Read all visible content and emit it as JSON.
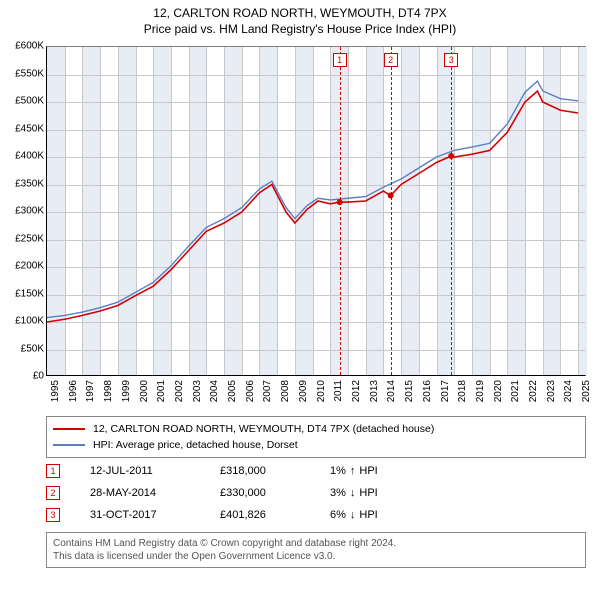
{
  "title": {
    "line1": "12, CARLTON ROAD NORTH, WEYMOUTH, DT4 7PX",
    "line2": "Price paid vs. HM Land Registry's House Price Index (HPI)"
  },
  "chart": {
    "type": "line",
    "background_color": "#ffffff",
    "grid_color": "#c8c8c8",
    "border_color": "#808080",
    "axis_color": "#000000",
    "font_family": "Arial",
    "tick_fontsize": 10,
    "title_fontsize": 12,
    "x": {
      "min": 1995,
      "max": 2025.5,
      "ticks": [
        1995,
        1996,
        1997,
        1998,
        1999,
        2000,
        2001,
        2002,
        2003,
        2004,
        2005,
        2006,
        2007,
        2008,
        2009,
        2010,
        2011,
        2012,
        2013,
        2014,
        2015,
        2016,
        2017,
        2018,
        2019,
        2020,
        2021,
        2022,
        2023,
        2024,
        2025
      ]
    },
    "y": {
      "min": 0,
      "max": 600000,
      "tick_step": 50000,
      "tick_format_prefix": "£",
      "tick_format_suffix": "K",
      "tick_divide": 1000
    },
    "shaded_bands": [
      {
        "from": 1995,
        "to": 1996,
        "color": "#e8edf5"
      },
      {
        "from": 1997,
        "to": 1998,
        "color": "#e8edf5"
      },
      {
        "from": 1999,
        "to": 2000,
        "color": "#e8edf5"
      },
      {
        "from": 2001,
        "to": 2002,
        "color": "#e8edf5"
      },
      {
        "from": 2003,
        "to": 2004,
        "color": "#e8edf5"
      },
      {
        "from": 2005,
        "to": 2006,
        "color": "#e8edf5"
      },
      {
        "from": 2007,
        "to": 2008,
        "color": "#e8edf5"
      },
      {
        "from": 2009,
        "to": 2010,
        "color": "#e8edf5"
      },
      {
        "from": 2011,
        "to": 2012,
        "color": "#e8edf5"
      },
      {
        "from": 2013,
        "to": 2014,
        "color": "#e8edf5"
      },
      {
        "from": 2015,
        "to": 2016,
        "color": "#e8edf5"
      },
      {
        "from": 2017,
        "to": 2018,
        "color": "#e8edf5"
      },
      {
        "from": 2019,
        "to": 2020,
        "color": "#e8edf5"
      },
      {
        "from": 2021,
        "to": 2022,
        "color": "#e8edf5"
      },
      {
        "from": 2023,
        "to": 2024,
        "color": "#e8edf5"
      },
      {
        "from": 2025,
        "to": 2025.5,
        "color": "#e8edf5"
      }
    ],
    "series": [
      {
        "name": "12, CARLTON ROAD NORTH, WEYMOUTH, DT4 7PX (detached house)",
        "color": "#d40000",
        "line_width": 1.6,
        "data": [
          [
            1995,
            100000
          ],
          [
            1996,
            105000
          ],
          [
            1997,
            112000
          ],
          [
            1998,
            120000
          ],
          [
            1999,
            130000
          ],
          [
            2000,
            148000
          ],
          [
            2001,
            165000
          ],
          [
            2002,
            195000
          ],
          [
            2003,
            230000
          ],
          [
            2004,
            265000
          ],
          [
            2005,
            280000
          ],
          [
            2006,
            300000
          ],
          [
            2007,
            335000
          ],
          [
            2007.7,
            350000
          ],
          [
            2008.5,
            300000
          ],
          [
            2009,
            280000
          ],
          [
            2009.7,
            305000
          ],
          [
            2010.3,
            320000
          ],
          [
            2011,
            315000
          ],
          [
            2011.53,
            318000
          ],
          [
            2012,
            318000
          ],
          [
            2013,
            320000
          ],
          [
            2014,
            338000
          ],
          [
            2014.41,
            330000
          ],
          [
            2015,
            350000
          ],
          [
            2016,
            370000
          ],
          [
            2017,
            390000
          ],
          [
            2017.83,
            401826
          ],
          [
            2018,
            400000
          ],
          [
            2019,
            405000
          ],
          [
            2020,
            412000
          ],
          [
            2021,
            445000
          ],
          [
            2022,
            500000
          ],
          [
            2022.7,
            520000
          ],
          [
            2023,
            500000
          ],
          [
            2024,
            485000
          ],
          [
            2025,
            480000
          ]
        ]
      },
      {
        "name": "HPI: Average price, detached house, Dorset",
        "color": "#5a7fc4",
        "line_width": 1.4,
        "data": [
          [
            1995,
            108000
          ],
          [
            1996,
            112000
          ],
          [
            1997,
            118000
          ],
          [
            1998,
            126000
          ],
          [
            1999,
            136000
          ],
          [
            2000,
            154000
          ],
          [
            2001,
            172000
          ],
          [
            2002,
            202000
          ],
          [
            2003,
            238000
          ],
          [
            2004,
            272000
          ],
          [
            2005,
            288000
          ],
          [
            2006,
            308000
          ],
          [
            2007,
            342000
          ],
          [
            2007.7,
            356000
          ],
          [
            2008.5,
            308000
          ],
          [
            2009,
            288000
          ],
          [
            2009.7,
            312000
          ],
          [
            2010.3,
            325000
          ],
          [
            2011,
            322000
          ],
          [
            2012,
            325000
          ],
          [
            2013,
            328000
          ],
          [
            2014,
            345000
          ],
          [
            2015,
            360000
          ],
          [
            2016,
            380000
          ],
          [
            2017,
            400000
          ],
          [
            2018,
            412000
          ],
          [
            2019,
            418000
          ],
          [
            2020,
            425000
          ],
          [
            2021,
            460000
          ],
          [
            2022,
            518000
          ],
          [
            2022.7,
            538000
          ],
          [
            2023,
            520000
          ],
          [
            2024,
            506000
          ],
          [
            2025,
            502000
          ]
        ]
      }
    ],
    "markers": [
      {
        "label": "1",
        "x": 2011.53,
        "y": 318000,
        "color": "#d40000"
      },
      {
        "label": "2",
        "x": 2014.41,
        "y": 330000,
        "color": "#d40000"
      },
      {
        "label": "3",
        "x": 2017.83,
        "y": 401826,
        "color": "#d40000"
      }
    ],
    "marker_dots": {
      "radius": 3,
      "fill": "#d40000"
    }
  },
  "legend": {
    "items": [
      {
        "color": "#d40000",
        "label": "12, CARLTON ROAD NORTH, WEYMOUTH, DT4 7PX (detached house)"
      },
      {
        "color": "#5a7fc4",
        "label": "HPI: Average price, detached house, Dorset"
      }
    ]
  },
  "sales": [
    {
      "marker": "1",
      "marker_color": "#d40000",
      "date": "12-JUL-2011",
      "price": "£318,000",
      "hpi_pct": "1%",
      "hpi_dir": "↑",
      "hpi_label": "HPI"
    },
    {
      "marker": "2",
      "marker_color": "#d40000",
      "date": "28-MAY-2014",
      "price": "£330,000",
      "hpi_pct": "3%",
      "hpi_dir": "↓",
      "hpi_label": "HPI"
    },
    {
      "marker": "3",
      "marker_color": "#d40000",
      "date": "31-OCT-2017",
      "price": "£401,826",
      "hpi_pct": "6%",
      "hpi_dir": "↓",
      "hpi_label": "HPI"
    }
  ],
  "footnote": {
    "line1": "Contains HM Land Registry data © Crown copyright and database right 2024.",
    "line2": "This data is licensed under the Open Government Licence v3.0."
  }
}
